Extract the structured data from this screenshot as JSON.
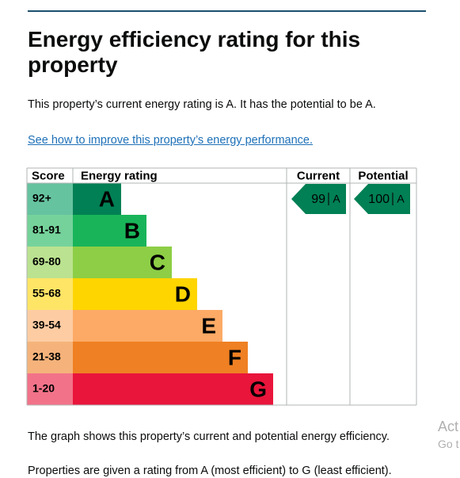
{
  "header": {
    "title": "Energy efficiency rating for this property"
  },
  "intro": "This property’s current energy rating is A. It has the potential to be A.",
  "link": "See how to improve this property’s energy performance.",
  "table": {
    "headers": [
      "Score",
      "Energy rating",
      "Current",
      "Potential"
    ],
    "rows": [
      {
        "score": "92+",
        "band": "A",
        "color": "#008054",
        "light": "#66c3a0"
      },
      {
        "score": "81-91",
        "band": "B",
        "color": "#19b459",
        "light": "#75d29b"
      },
      {
        "score": "69-80",
        "band": "C",
        "color": "#8dce46",
        "light": "#bbe290"
      },
      {
        "score": "55-68",
        "band": "D",
        "color": "#ffd500",
        "light": "#ffe566"
      },
      {
        "score": "39-54",
        "band": "E",
        "color": "#fcaa65",
        "light": "#fdcca3"
      },
      {
        "score": "21-38",
        "band": "F",
        "color": "#ef8023",
        "light": "#f5b37b"
      },
      {
        "score": "1-20",
        "band": "G",
        "color": "#e9153b",
        "light": "#f27389"
      }
    ]
  },
  "current": {
    "score": 99,
    "band": "A"
  },
  "potential": {
    "score": 100,
    "band": "A"
  },
  "notes": [
    "The graph shows this property’s current and potential energy efficiency.",
    "Properties are given a rating from A (most efficient) to G (least efficient)."
  ],
  "watermark": [
    "Act",
    "Go t"
  ]
}
